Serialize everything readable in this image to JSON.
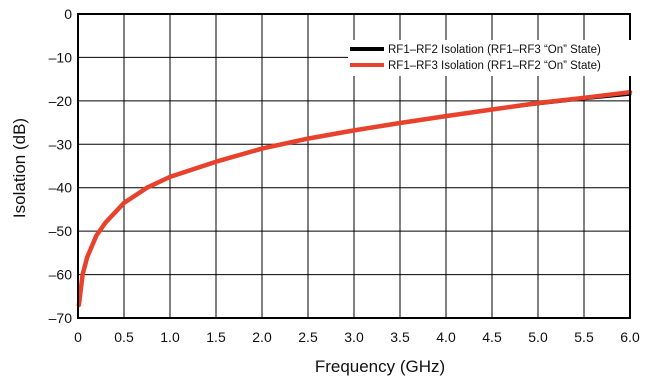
{
  "chart_data": {
    "type": "line",
    "xlabel": "Frequency (GHz)",
    "ylabel": "Isolation (dB)",
    "xlim": [
      0,
      6.0
    ],
    "ylim": [
      -70,
      0
    ],
    "x_ticks": [
      "0",
      "0.5",
      "1.0",
      "1.5",
      "2.0",
      "2.5",
      "3.0",
      "3.5",
      "4.0",
      "4.5",
      "5.0",
      "5.5",
      "6.0"
    ],
    "y_ticks": [
      "0",
      "–10",
      "–20",
      "–30",
      "–40",
      "–50",
      "–60",
      "–70"
    ],
    "x_tick_values": [
      0,
      0.5,
      1.0,
      1.5,
      2.0,
      2.5,
      3.0,
      3.5,
      4.0,
      4.5,
      5.0,
      5.5,
      6.0
    ],
    "y_tick_values": [
      0,
      -10,
      -20,
      -30,
      -40,
      -50,
      -60,
      -70
    ],
    "grid": true,
    "legend_position": "top-right",
    "series": [
      {
        "name": "RF1–RF2 Isolation (RF1–RF3 “On” State)",
        "color": "#000000",
        "x": [
          0.01,
          0.05,
          0.1,
          0.2,
          0.3,
          0.5,
          0.75,
          1.0,
          1.5,
          2.0,
          2.5,
          3.0,
          3.5,
          4.0,
          4.5,
          5.0,
          5.5,
          6.0
        ],
        "y": [
          -67,
          -60,
          -56,
          -51,
          -48,
          -43.5,
          -40,
          -37.5,
          -34,
          -31,
          -28.7,
          -26.8,
          -25.1,
          -23.5,
          -22.0,
          -20.7,
          -19.5,
          -18.5
        ]
      },
      {
        "name": "RF1–RF3 Isolation (RF1–RF2  “On” State)",
        "color": "#e8412c",
        "x": [
          0.01,
          0.05,
          0.1,
          0.2,
          0.3,
          0.5,
          0.75,
          1.0,
          1.5,
          2.0,
          2.5,
          3.0,
          3.5,
          4.0,
          4.5,
          5.0,
          5.5,
          6.0
        ],
        "y": [
          -67,
          -60,
          -56,
          -51,
          -48,
          -43.5,
          -40,
          -37.5,
          -34,
          -31,
          -28.7,
          -26.8,
          -25.1,
          -23.5,
          -22.0,
          -20.5,
          -19.3,
          -18.0
        ]
      }
    ]
  }
}
